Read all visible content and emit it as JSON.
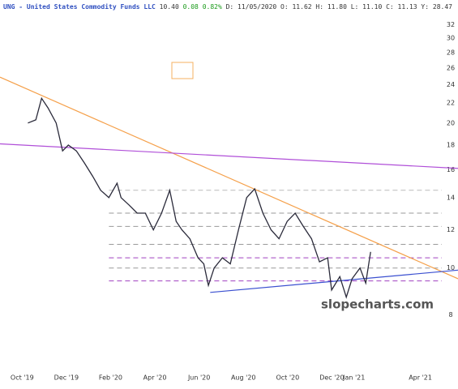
{
  "header": {
    "symbol": "UNG - United States Commodity Funds LLC",
    "last": "10.40",
    "change": "0.08",
    "change_pct": "0.82%",
    "rest": "D: 11/05/2020 O: 11.62 H: 11.80 L: 11.10 C: 11.13 Y: 28.47"
  },
  "watermark": "slopecharts.com",
  "chart_data": {
    "type": "line",
    "log_y": true,
    "grid": false,
    "xlim": [
      -1,
      19.7
    ],
    "ylim": [
      6.3,
      36
    ],
    "xticks": [
      {
        "value": 0,
        "label": "Oct '19"
      },
      {
        "value": 2,
        "label": "Dec '19"
      },
      {
        "value": 4,
        "label": "Feb '20"
      },
      {
        "value": 6,
        "label": "Apr '20"
      },
      {
        "value": 8,
        "label": "Jun '20"
      },
      {
        "value": 10,
        "label": "Aug '20"
      },
      {
        "value": 12,
        "label": "Oct '20"
      },
      {
        "value": 14,
        "label": "Dec '20"
      },
      {
        "value": 15,
        "label": "Jan '21"
      },
      {
        "value": 18,
        "label": "Apr '21"
      }
    ],
    "yticks": [
      8,
      10,
      12,
      14,
      16,
      18,
      20,
      22,
      24,
      26,
      28,
      30,
      32
    ],
    "series": [
      {
        "name": "UNG",
        "color": "#2a2a3a",
        "x": [
          0.26,
          0.62,
          0.88,
          1.17,
          1.54,
          1.83,
          2.09,
          2.45,
          2.82,
          3.19,
          3.55,
          3.92,
          4.29,
          4.47,
          4.84,
          5.2,
          5.57,
          5.93,
          6.3,
          6.67,
          6.96,
          7.22,
          7.58,
          7.95,
          8.21,
          8.42,
          8.68,
          9.05,
          9.41,
          9.78,
          10.15,
          10.51,
          10.88,
          11.25,
          11.61,
          11.98,
          12.34,
          12.71,
          13.08,
          13.44,
          13.81,
          13.99,
          14.36,
          14.65,
          14.91,
          15.27,
          15.53,
          15.75
        ],
        "values": [
          20,
          20.3,
          22.5,
          21.5,
          20,
          17.5,
          18,
          17.5,
          16.5,
          15.5,
          14.5,
          14,
          15,
          14,
          13.5,
          13,
          13,
          12,
          13,
          14.5,
          12.5,
          12,
          11.5,
          10.5,
          10.2,
          9.2,
          10,
          10.5,
          10.2,
          12,
          14,
          14.6,
          13,
          12,
          11.5,
          12.5,
          13,
          12.2,
          11.5,
          10.3,
          10.5,
          9,
          9.6,
          8.7,
          9.5,
          10,
          9.3,
          10.8
        ]
      }
    ],
    "trendlines": [
      {
        "color": "#f5a04a",
        "x": [
          -1,
          19.7
        ],
        "y": [
          24.9,
          9.5
        ]
      },
      {
        "color": "#b04fd8",
        "x": [
          -1,
          19.7
        ],
        "y": [
          18.1,
          16.1
        ]
      },
      {
        "color": "#3a4fd0",
        "x": [
          8.5,
          19.7
        ],
        "y": [
          8.9,
          9.9
        ]
      }
    ],
    "levels": [
      {
        "value": 14.5,
        "color": "#bbbbbb"
      },
      {
        "value": 13.0,
        "color": "#999999"
      },
      {
        "value": 12.2,
        "color": "#999999"
      },
      {
        "value": 11.2,
        "color": "#999999"
      },
      {
        "value": 10.5,
        "color": "#a040c0"
      },
      {
        "value": 10.0,
        "color": "#999999"
      },
      {
        "value": 9.4,
        "color": "#a040c0"
      }
    ]
  }
}
